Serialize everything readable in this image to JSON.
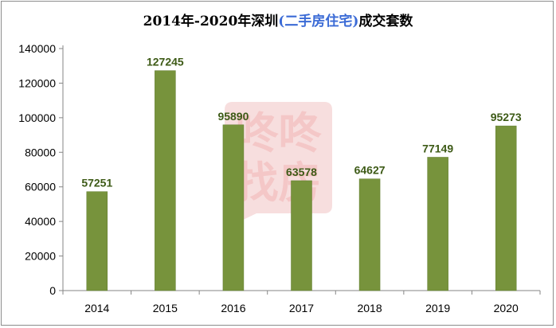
{
  "chart_data": {
    "type": "bar",
    "title_parts": [
      "2014年-2020年深圳",
      "(二手房住宅)",
      "成交套数"
    ],
    "categories": [
      "2014",
      "2015",
      "2016",
      "2017",
      "2018",
      "2019",
      "2020"
    ],
    "values": [
      57251,
      127245,
      95890,
      63578,
      64627,
      77149,
      95273
    ],
    "ylim": [
      0,
      140000
    ],
    "yticks": [
      0,
      20000,
      40000,
      60000,
      80000,
      100000,
      120000,
      140000
    ],
    "grid": false,
    "legend": "none",
    "bar_color": "#77933c",
    "bar_edge_color": "#5f7a2c",
    "label_color": "#3d5a16"
  },
  "watermark": {
    "text": [
      "咚咚",
      "找房"
    ],
    "color": "#f4c7c7"
  }
}
